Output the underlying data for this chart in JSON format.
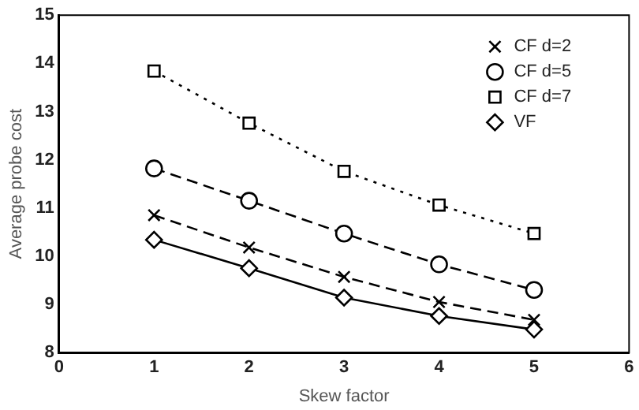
{
  "chart_data": {
    "type": "line",
    "xlabel": "Skew factor",
    "ylabel": "Average probe cost",
    "x": [
      1,
      2,
      3,
      4,
      5
    ],
    "xlim": [
      0,
      6
    ],
    "xticks": [
      0,
      1,
      2,
      3,
      4,
      5,
      6
    ],
    "ylim": [
      8,
      15
    ],
    "yticks": [
      8,
      9,
      10,
      11,
      12,
      13,
      14,
      15
    ],
    "grid": false,
    "legend": "top right",
    "series": [
      {
        "name": "CF d=2",
        "color": "#000000",
        "marker": "cross",
        "line_style": "dashed",
        "values": [
          10.85,
          10.18,
          9.57,
          9.05,
          8.68
        ]
      },
      {
        "name": "CF d=5",
        "color": "#000000",
        "marker": "circle",
        "line_style": "dashed",
        "values": [
          11.82,
          11.15,
          10.47,
          9.83,
          9.3
        ]
      },
      {
        "name": "CF d=7",
        "color": "#000000",
        "marker": "square",
        "line_style": "dotted",
        "values": [
          13.84,
          12.76,
          11.76,
          11.06,
          10.47
        ]
      },
      {
        "name": "VF",
        "color": "#000000",
        "marker": "diamond",
        "line_style": "solid",
        "values": [
          10.34,
          9.75,
          9.14,
          8.76,
          8.48
        ]
      }
    ]
  }
}
